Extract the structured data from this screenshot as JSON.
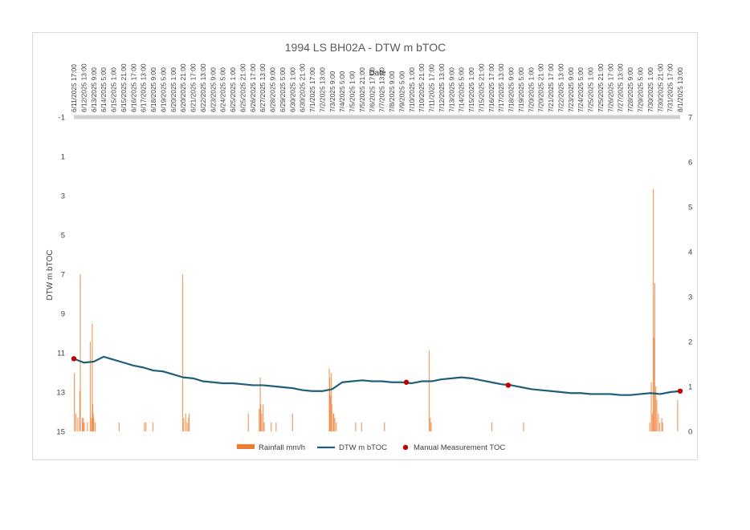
{
  "chart_data": {
    "type": "line",
    "title": "1994 LS BH02A - DTW m bTOC",
    "xlabel": "Date",
    "ylabel": "DTW m bTOC",
    "y_axis": {
      "reversed": true,
      "min": -1,
      "max": 15,
      "ticks": [
        -1,
        1,
        3,
        5,
        7,
        9,
        11,
        13,
        15
      ]
    },
    "y2_axis": {
      "min": 0,
      "max": 7,
      "ticks": [
        0,
        1,
        2,
        3,
        4,
        5,
        6,
        7
      ]
    },
    "x_axis": {
      "position": "top",
      "start": "6/11/2025 17:00",
      "end": "8/1/2025 13:00"
    },
    "x_tick_labels": [
      "6/11/2025 17:00",
      "6/12/2025 13:00",
      "6/13/2025 9:00",
      "6/14/2025 5:00",
      "6/15/2025 1:00",
      "6/15/2025 21:00",
      "6/16/2025 17:00",
      "6/17/2025 13:00",
      "6/18/2025 9:00",
      "6/19/2025 5:00",
      "6/20/2025 1:00",
      "6/20/2025 21:00",
      "6/21/2025 17:00",
      "6/22/2025 13:00",
      "6/23/2025 9:00",
      "6/24/2025 5:00",
      "6/25/2025 1:00",
      "6/25/2025 21:00",
      "6/26/2025 17:00",
      "6/27/2025 13:00",
      "6/28/2025 9:00",
      "6/29/2025 5:00",
      "6/30/2025 1:00",
      "6/30/2025 21:00",
      "7/1/2025 17:00",
      "7/2/2025 13:00",
      "7/3/2025 9:00",
      "7/4/2025 5:00",
      "7/5/2025 1:00",
      "7/5/2025 21:00",
      "7/6/2025 17:00",
      "7/7/2025 13:00",
      "7/8/2025 9:00",
      "7/9/2025 5:00",
      "7/10/2025 1:00",
      "7/10/2025 21:00",
      "7/11/2025 17:00",
      "7/12/2025 13:00",
      "7/13/2025 9:00",
      "7/14/2025 5:00",
      "7/15/2025 1:00",
      "7/15/2025 21:00",
      "7/16/2025 17:00",
      "7/17/2025 13:00",
      "7/18/2025 9:00",
      "7/19/2025 5:00",
      "7/20/2025 1:00",
      "7/20/2025 21:00",
      "7/21/2025 17:00",
      "7/22/2025 13:00",
      "7/23/2025 9:00",
      "7/24/2025 5:00",
      "7/25/2025 1:00",
      "7/25/2025 21:00",
      "7/26/2025 17:00",
      "7/27/2025 13:00",
      "7/28/2025 9:00",
      "7/29/2025 5:00",
      "7/30/2025 1:00",
      "7/30/2025 21:00",
      "7/31/2025 17:00",
      "8/1/2025 13:00"
    ],
    "grid": false,
    "legend_position": "bottom",
    "series": [
      {
        "name": "DTW m bTOC",
        "type": "line",
        "axis": "primary",
        "color": "#1f5f7a",
        "x": [
          "6/11/2025 17:00",
          "6/12/2025 13:00",
          "6/13/2025 9:00",
          "6/14/2025 5:00",
          "6/15/2025 1:00",
          "6/15/2025 21:00",
          "6/16/2025 17:00",
          "6/17/2025 13:00",
          "6/18/2025 9:00",
          "6/19/2025 5:00",
          "6/20/2025 1:00",
          "6/20/2025 21:00",
          "6/21/2025 17:00",
          "6/22/2025 13:00",
          "6/23/2025 9:00",
          "6/24/2025 5:00",
          "6/25/2025 1:00",
          "6/25/2025 21:00",
          "6/26/2025 17:00",
          "6/27/2025 13:00",
          "6/28/2025 9:00",
          "6/29/2025 5:00",
          "6/30/2025 1:00",
          "6/30/2025 21:00",
          "7/1/2025 17:00",
          "7/2/2025 13:00",
          "7/3/2025 9:00",
          "7/4/2025 5:00",
          "7/5/2025 1:00",
          "7/5/2025 21:00",
          "7/6/2025 17:00",
          "7/7/2025 13:00",
          "7/8/2025 9:00",
          "7/9/2025 5:00",
          "7/10/2025 1:00",
          "7/10/2025 21:00",
          "7/11/2025 17:00",
          "7/12/2025 13:00",
          "7/13/2025 9:00",
          "7/14/2025 5:00",
          "7/15/2025 1:00",
          "7/15/2025 21:00",
          "7/16/2025 17:00",
          "7/17/2025 13:00",
          "7/18/2025 9:00",
          "7/19/2025 5:00",
          "7/20/2025 1:00",
          "7/20/2025 21:00",
          "7/21/2025 17:00",
          "7/22/2025 13:00",
          "7/23/2025 9:00",
          "7/24/2025 5:00",
          "7/25/2025 1:00",
          "7/25/2025 21:00",
          "7/26/2025 17:00",
          "7/27/2025 13:00",
          "7/28/2025 9:00",
          "7/29/2025 5:00",
          "7/30/2025 1:00",
          "7/30/2025 21:00",
          "7/31/2025 17:00",
          "8/1/2025 13:00"
        ],
        "values": [
          11.3,
          11.5,
          11.45,
          11.2,
          11.35,
          11.5,
          11.65,
          11.75,
          11.9,
          11.95,
          12.1,
          12.25,
          12.3,
          12.45,
          12.5,
          12.55,
          12.55,
          12.6,
          12.65,
          12.65,
          12.7,
          12.75,
          12.8,
          12.9,
          12.95,
          12.95,
          12.85,
          12.5,
          12.45,
          12.4,
          12.45,
          12.45,
          12.5,
          12.5,
          12.55,
          12.45,
          12.45,
          12.35,
          12.3,
          12.25,
          12.3,
          12.4,
          12.5,
          12.6,
          12.65,
          12.75,
          12.85,
          12.9,
          12.95,
          13.0,
          13.05,
          13.05,
          13.1,
          13.1,
          13.1,
          13.15,
          13.15,
          13.1,
          13.05,
          13.1,
          13.0,
          12.95
        ]
      },
      {
        "name": "Manual Measurement TOC",
        "type": "scatter",
        "axis": "primary",
        "color": "#c00000",
        "x": [
          "6/11/2025 17:00",
          "7/9/2025 14:00",
          "7/18/2025 3:00",
          "8/1/2025 13:00"
        ],
        "values": [
          11.3,
          12.5,
          12.65,
          12.95
        ]
      },
      {
        "name": "Rainfall mm/h",
        "type": "bar",
        "axis": "secondary",
        "color": "#ed7d31",
        "x": [
          "6/11/2025 18:00",
          "6/11/2025 21:00",
          "6/12/2025 1:00",
          "6/12/2025 5:00",
          "6/12/2025 6:00",
          "6/12/2025 10:00",
          "6/12/2025 11:00",
          "6/12/2025 12:00",
          "6/12/2025 14:00",
          "6/12/2025 20:00",
          "6/13/2025 2:00",
          "6/13/2025 4:00",
          "6/13/2025 6:00",
          "6/13/2025 7:00",
          "6/13/2025 8:00",
          "6/13/2025 9:00",
          "6/13/2025 12:00",
          "6/15/2025 12:00",
          "6/17/2025 15:00",
          "6/17/2025 18:00",
          "6/18/2025 8:00",
          "6/20/2025 20:00",
          "6/20/2025 22:00",
          "6/21/2025 2:00",
          "6/21/2025 5:00",
          "6/21/2025 8:00",
          "6/21/2025 9:00",
          "6/26/2025 8:00",
          "6/27/2025 6:00",
          "6/27/2025 8:00",
          "6/27/2025 9:00",
          "6/27/2025 11:00",
          "6/27/2025 14:00",
          "6/27/2025 16:00",
          "6/28/2025 6:00",
          "6/28/2025 16:00",
          "6/30/2025 1:00",
          "7/3/2025 3:00",
          "7/3/2025 4:00",
          "7/3/2025 5:00",
          "7/3/2025 7:00",
          "7/3/2025 8:00",
          "7/3/2025 11:00",
          "7/3/2025 12:00",
          "7/3/2025 14:00",
          "7/3/2025 17:00",
          "7/5/2025 8:00",
          "7/5/2025 20:00",
          "7/7/2025 18:00",
          "7/11/2025 12:00",
          "7/11/2025 14:00",
          "7/11/2025 16:00",
          "7/16/2025 18:00",
          "7/19/2025 10:00",
          "7/30/2025 0:00",
          "7/30/2025 3:00",
          "7/30/2025 5:00",
          "7/30/2025 7:00",
          "7/30/2025 8:00",
          "7/30/2025 10:00",
          "7/30/2025 12:00",
          "7/30/2025 14:00",
          "7/30/2025 17:00",
          "7/30/2025 20:00",
          "7/31/2025 0:00",
          "7/31/2025 2:00",
          "8/1/2025 8:00"
        ],
        "values": [
          1.3,
          0.4,
          0.3,
          0.9,
          3.5,
          0.3,
          0.2,
          0.3,
          0.2,
          0.2,
          2.0,
          0.3,
          2.4,
          0.6,
          0.4,
          0.3,
          0.2,
          0.2,
          0.2,
          0.2,
          0.2,
          3.5,
          0.3,
          0.4,
          0.2,
          0.3,
          0.4,
          0.4,
          0.5,
          1.2,
          0.6,
          0.4,
          0.6,
          0.2,
          0.2,
          0.2,
          0.4,
          1.4,
          1.2,
          0.8,
          1.3,
          0.6,
          0.4,
          0.4,
          0.3,
          0.2,
          0.2,
          0.2,
          0.2,
          1.8,
          0.3,
          0.2,
          0.2,
          0.2,
          0.2,
          1.1,
          0.4,
          5.4,
          2.1,
          3.3,
          1.0,
          0.7,
          0.4,
          0.2,
          0.3,
          0.2,
          0.7
        ]
      }
    ]
  }
}
